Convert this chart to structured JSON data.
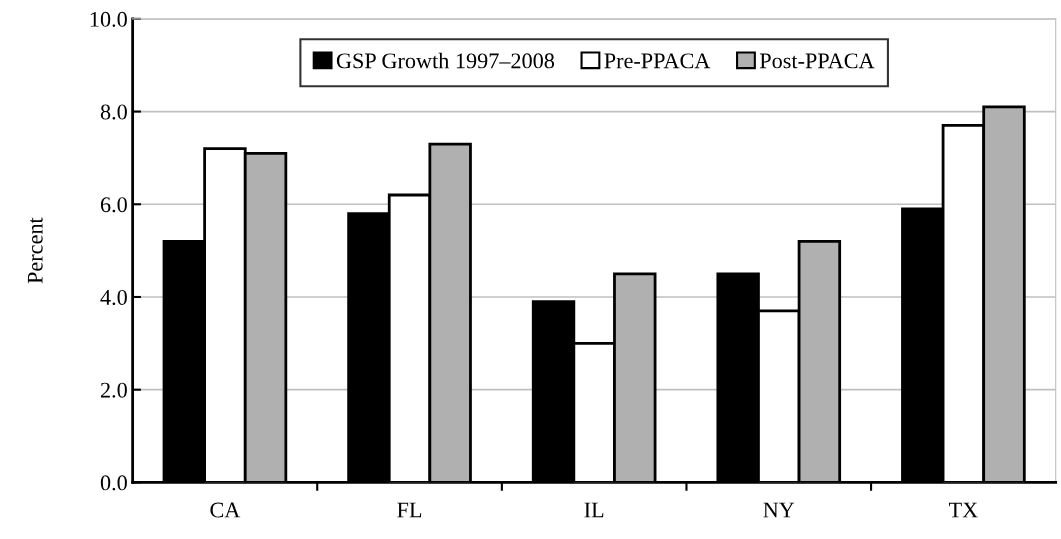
{
  "chart_data": {
    "type": "bar",
    "ylabel": "Percent",
    "categories": [
      "CA",
      "FL",
      "IL",
      "NY",
      "TX"
    ],
    "series": [
      {
        "name": "GSP Growth 1997–2008",
        "color": "#000000",
        "values": [
          5.2,
          5.8,
          3.9,
          4.5,
          5.9
        ]
      },
      {
        "name": "Pre-PPACA",
        "color": "#ffffff",
        "values": [
          7.2,
          6.2,
          3.0,
          3.7,
          7.7
        ]
      },
      {
        "name": "Post-PPACA",
        "color": "#b0b0b0",
        "values": [
          7.1,
          7.3,
          4.5,
          5.2,
          8.1
        ]
      }
    ],
    "ylim": [
      0,
      10
    ],
    "yticks": [
      {
        "value": 0,
        "label": "0.0"
      },
      {
        "value": 2,
        "label": "2.0"
      },
      {
        "value": 4,
        "label": "4.0"
      },
      {
        "value": 6,
        "label": "6.0"
      },
      {
        "value": 8,
        "label": "8.0"
      },
      {
        "value": 10,
        "label": "10.0"
      }
    ],
    "grid": "y",
    "legend": "top"
  }
}
